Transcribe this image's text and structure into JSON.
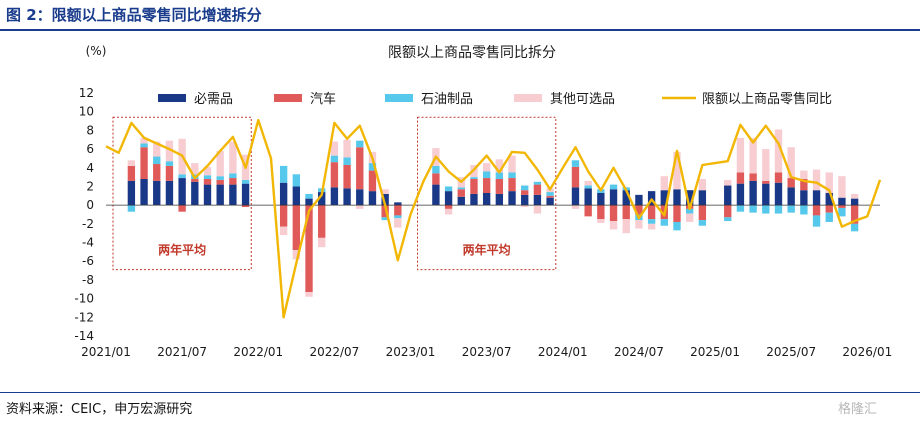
{
  "header": {
    "title": "图 2：限额以上商品零售同比增速拆分"
  },
  "footer": {
    "source": "资料来源：CEIC，申万宏源研究",
    "watermark": "格隆汇"
  },
  "colors": {
    "title": "#1a3c8c",
    "necessity": "#1a3888",
    "auto": "#e05a5a",
    "oil": "#56c8ec",
    "other": "#f7cdd2",
    "total": "#f2b705",
    "box": "#c0392b"
  },
  "chart_data": {
    "type": "bar",
    "title": "限额以上商品零售同比拆分",
    "ylabel": "(%)",
    "ylim": [
      -14,
      12
    ],
    "yticks": [
      12,
      10,
      8,
      6,
      4,
      2,
      0,
      -2,
      -4,
      -6,
      -8,
      -10,
      -12,
      -14
    ],
    "xtick_labels": [
      "2021/01",
      "2021/07",
      "2022/01",
      "2022/07",
      "2023/01",
      "2023/07",
      "2024/01",
      "2024/07",
      "2025/01",
      "2025/07",
      "2026/01"
    ],
    "xtick_months": [
      0,
      6,
      12,
      18,
      24,
      30,
      36,
      42,
      48,
      54,
      60
    ],
    "x_range_months": [
      0,
      61
    ],
    "months_missing": [
      0,
      1,
      12,
      13,
      24,
      25,
      36,
      48,
      60
    ],
    "series": [
      {
        "name": "必需品",
        "type": "bar",
        "values": [
          null,
          null,
          2.6,
          2.8,
          2.6,
          2.6,
          2.9,
          2.5,
          2.2,
          2.2,
          2.2,
          2.3,
          null,
          null,
          2.4,
          2.0,
          0.7,
          1.4,
          1.9,
          1.8,
          1.7,
          1.5,
          1.2,
          0.3,
          null,
          null,
          2.2,
          1.5,
          0.9,
          1.2,
          1.3,
          1.2,
          1.5,
          1.1,
          1.1,
          0.8,
          null,
          1.9,
          1.8,
          1.3,
          1.7,
          1.6,
          1.1,
          1.5,
          1.6,
          1.7,
          1.6,
          1.6,
          null,
          2.1,
          2.3,
          2.6,
          2.3,
          2.4,
          1.9,
          1.6,
          1.6,
          1.3,
          0.8,
          0.7,
          null,
          2.6
        ]
      },
      {
        "name": "汽车",
        "type": "bar",
        "values": [
          null,
          null,
          1.6,
          3.4,
          1.8,
          1.6,
          -0.7,
          0.3,
          0.6,
          0.5,
          0.7,
          -0.2,
          null,
          null,
          -2.3,
          -4.8,
          -9.3,
          -3.5,
          2.7,
          2.5,
          4.5,
          2.2,
          -1.3,
          -1.1,
          null,
          null,
          1.2,
          -0.4,
          0.8,
          1.6,
          1.6,
          1.6,
          1.4,
          0.5,
          1.1,
          0.2,
          null,
          2.2,
          -1.2,
          -1.5,
          -1.7,
          -1.5,
          -1.0,
          -1.5,
          -1.5,
          -1.8,
          -0.4,
          -1.6,
          null,
          -1.3,
          1.2,
          0.8,
          0.3,
          1.1,
          1.0,
          1.2,
          -1.1,
          -0.8,
          -0.3,
          -2.0,
          null,
          -1.5
        ]
      },
      {
        "name": "石油制品",
        "type": "bar",
        "values": [
          null,
          null,
          -0.7,
          0.4,
          0.8,
          0.5,
          0.4,
          0.5,
          0.4,
          0.4,
          0.5,
          0.4,
          null,
          null,
          1.8,
          1.3,
          0.5,
          0.4,
          0.7,
          0.8,
          0.7,
          0.8,
          -0.3,
          -0.3,
          null,
          null,
          0.8,
          0.5,
          0.2,
          0.2,
          0.7,
          0.7,
          0.6,
          0.5,
          0.3,
          0.4,
          null,
          0.7,
          0.3,
          0.4,
          0.5,
          0.3,
          -0.6,
          -0.5,
          -0.7,
          -0.9,
          -0.5,
          -0.6,
          null,
          -0.4,
          -0.7,
          -0.8,
          -0.9,
          -0.9,
          -0.8,
          -1.0,
          -1.2,
          -1.0,
          -0.9,
          -0.8,
          null,
          -1.4
        ]
      },
      {
        "name": "其他可选品",
        "type": "bar",
        "values": [
          null,
          null,
          0.6,
          0.6,
          1.6,
          2.2,
          3.8,
          1.2,
          0.9,
          2.7,
          3.4,
          2.7,
          null,
          null,
          -0.9,
          -1.0,
          -0.5,
          -1.0,
          1.5,
          1.9,
          -0.4,
          1.2,
          0.5,
          -1.0,
          null,
          null,
          1.9,
          -0.6,
          1.1,
          1.3,
          0.9,
          1.4,
          1.8,
          -0.2,
          -0.9,
          0.4,
          null,
          -0.4,
          0.5,
          -0.4,
          -0.9,
          -1.5,
          -0.9,
          -0.6,
          1.5,
          4.0,
          -0.9,
          1.2,
          null,
          0.6,
          3.7,
          3.8,
          3.4,
          4.6,
          3.3,
          0.9,
          2.2,
          2.2,
          2.3,
          0.5,
          null,
          2.9
        ]
      },
      {
        "name": "限额以上商品零售同比",
        "type": "line",
        "values": [
          6.3,
          5.6,
          8.8,
          7.2,
          6.6,
          6.0,
          5.3,
          2.9,
          4.2,
          5.8,
          7.3,
          4.0,
          9.1,
          5.0,
          -12.0,
          -6.2,
          -0.6,
          1.1,
          8.8,
          7.1,
          8.5,
          5.0,
          0.0,
          -5.9,
          -1.0,
          2.5,
          5.2,
          3.6,
          2.5,
          3.8,
          5.3,
          3.5,
          5.7,
          5.6,
          3.8,
          1.7,
          4.0,
          6.2,
          3.6,
          1.6,
          4.0,
          1.6,
          -1.4,
          0.6,
          -1.1,
          5.8,
          -0.4,
          4.3,
          4.5,
          4.7,
          8.6,
          6.7,
          8.5,
          6.6,
          3.0,
          2.6,
          2.4,
          1.6,
          -2.3,
          -1.7,
          -1.2,
          2.7
        ]
      }
    ],
    "legend_position": "top",
    "annotations": [
      {
        "text": "两年平均",
        "from_month": 1,
        "to_month": 11
      },
      {
        "text": "两年平均",
        "from_month": 25,
        "to_month": 35
      }
    ]
  }
}
